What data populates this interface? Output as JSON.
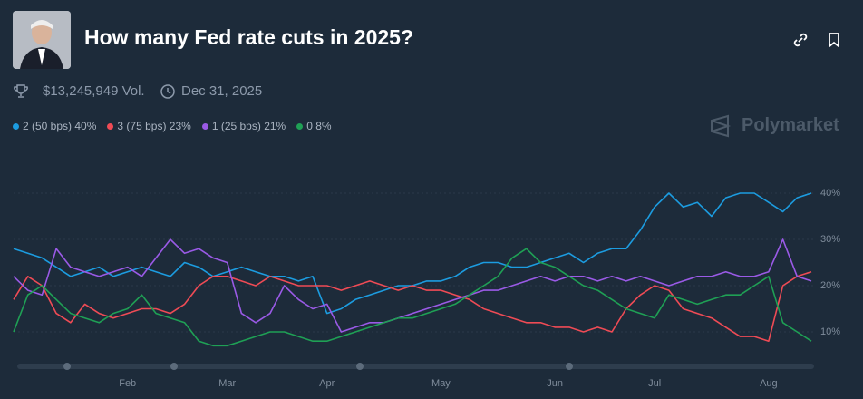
{
  "header": {
    "title": "How many Fed rate cuts in 2025?",
    "volume": "$13,245,949 Vol.",
    "end_date": "Dec 31, 2025",
    "brand": "Polymarket"
  },
  "chart_data": {
    "type": "line",
    "categories": [
      null,
      null,
      null,
      null,
      null,
      null,
      null,
      null,
      "Feb",
      null,
      null,
      null,
      null,
      null,
      null,
      "Mar",
      null,
      null,
      null,
      null,
      null,
      null,
      "Apr",
      null,
      null,
      null,
      null,
      null,
      null,
      null,
      "May",
      null,
      null,
      null,
      null,
      null,
      null,
      null,
      "Jun",
      null,
      null,
      null,
      null,
      null,
      null,
      "Jul",
      null,
      null,
      null,
      null,
      null,
      null,
      null,
      "Aug",
      null,
      null,
      null
    ],
    "series": [
      {
        "name": "2 (50 bps)",
        "legend_label": "40%",
        "color": "#1c9ce0",
        "values": [
          28,
          27,
          26,
          24,
          22,
          23,
          24,
          22,
          23,
          24,
          23,
          22,
          25,
          24,
          22,
          23,
          24,
          23,
          22,
          22,
          21,
          22,
          14,
          15,
          17,
          18,
          19,
          20,
          20,
          21,
          21,
          22,
          24,
          25,
          25,
          24,
          24,
          25,
          26,
          27,
          25,
          27,
          28,
          28,
          32,
          37,
          40,
          37,
          38,
          35,
          39,
          40,
          40,
          38,
          36,
          39,
          40
        ]
      },
      {
        "name": "3 (75 bps)",
        "legend_label": "23%",
        "color": "#ef4b55",
        "values": [
          17,
          22,
          20,
          14,
          12,
          16,
          14,
          13,
          14,
          15,
          15,
          14,
          16,
          20,
          22,
          22,
          21,
          20,
          22,
          21,
          20,
          20,
          20,
          19,
          20,
          21,
          20,
          19,
          20,
          19,
          19,
          18,
          17,
          15,
          14,
          13,
          12,
          12,
          11,
          11,
          10,
          11,
          10,
          15,
          18,
          20,
          19,
          15,
          14,
          13,
          11,
          9,
          9,
          8,
          20,
          22,
          23
        ]
      },
      {
        "name": "1 (25 bps)",
        "legend_label": "21%",
        "color": "#9a5ae6",
        "values": [
          22,
          19,
          18,
          28,
          24,
          23,
          22,
          23,
          24,
          22,
          26,
          30,
          27,
          28,
          26,
          25,
          14,
          12,
          14,
          20,
          17,
          15,
          16,
          10,
          11,
          12,
          12,
          13,
          14,
          15,
          16,
          17,
          18,
          19,
          19,
          20,
          21,
          22,
          21,
          22,
          22,
          21,
          22,
          21,
          22,
          21,
          20,
          21,
          22,
          22,
          23,
          22,
          22,
          23,
          30,
          22,
          21
        ]
      },
      {
        "name": "0",
        "legend_label": "8%",
        "color": "#1fa055",
        "values": [
          10,
          18,
          20,
          17,
          14,
          13,
          12,
          14,
          15,
          18,
          14,
          13,
          12,
          8,
          7,
          7,
          8,
          9,
          10,
          10,
          9,
          8,
          8,
          9,
          10,
          11,
          12,
          13,
          13,
          14,
          15,
          16,
          18,
          20,
          22,
          26,
          28,
          25,
          24,
          22,
          20,
          19,
          17,
          15,
          14,
          13,
          18,
          17,
          16,
          17,
          18,
          18,
          20,
          22,
          12,
          10,
          8
        ]
      }
    ],
    "ylim": [
      3,
      47
    ],
    "yticks": [
      {
        "value": 10,
        "label": "10%"
      },
      {
        "value": 20,
        "label": "20%"
      },
      {
        "value": 30,
        "label": "30%"
      },
      {
        "value": 40,
        "label": "40%"
      }
    ],
    "grid": true
  }
}
